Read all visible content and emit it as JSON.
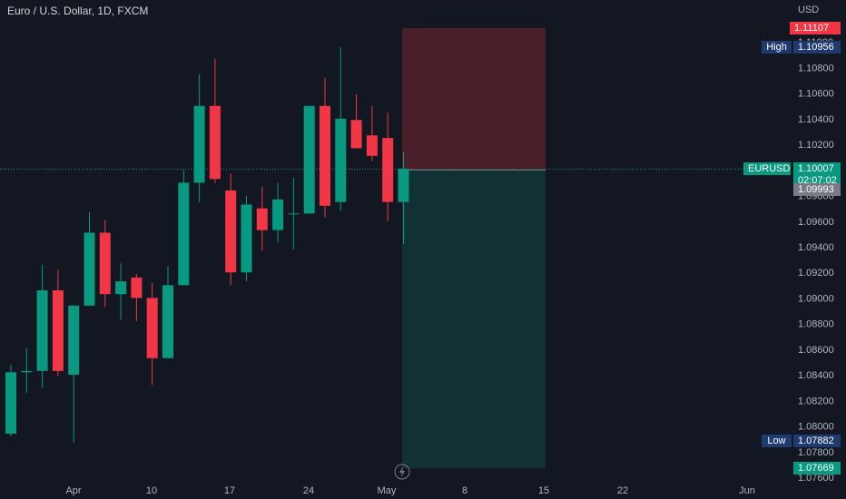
{
  "header": {
    "title": "Euro / U.S. Dollar, 1D, FXCM"
  },
  "price_axis": {
    "currency": "USD"
  },
  "markers": {
    "stop": "1.11107",
    "high_label": "High",
    "high_value": "1.10956",
    "symbol": "EURUSD",
    "last_price": "1.10007",
    "countdown": "02:07:02",
    "alt_price": "1.09993",
    "low_label": "Low",
    "low_value": "1.07882",
    "target": "1.07669"
  },
  "colors": {
    "up": "#089981",
    "down": "#f23645",
    "background": "#131722",
    "stop_zone": "rgba(242,54,69,0.25)",
    "target_zone": "rgba(8,153,129,0.2)"
  },
  "chart_data": {
    "type": "candlestick",
    "title": "Euro / U.S. Dollar, 1D, FXCM",
    "ylabel": "USD",
    "ylim": [
      1.076,
      1.112
    ],
    "y_ticks": [
      "1.07600",
      "1.07800",
      "1.08000",
      "1.08200",
      "1.08400",
      "1.08600",
      "1.08800",
      "1.09000",
      "1.09200",
      "1.09400",
      "1.09600",
      "1.09800",
      "1.10000",
      "1.10200",
      "1.10400",
      "1.10600",
      "1.10800",
      "1.11000",
      "1.11200"
    ],
    "x_ticks": [
      "Apr",
      "10",
      "17",
      "24",
      "May",
      "8",
      "15",
      "22",
      "Jun"
    ],
    "candles": [
      {
        "o": 1.0794,
        "h": 1.0848,
        "l": 1.0792,
        "c": 1.0842
      },
      {
        "o": 1.0842,
        "h": 1.0861,
        "l": 1.0826,
        "c": 1.0843
      },
      {
        "o": 1.0843,
        "h": 1.0926,
        "l": 1.083,
        "c": 1.0906
      },
      {
        "o": 1.0906,
        "h": 1.0922,
        "l": 1.0839,
        "c": 1.0843
      },
      {
        "o": 1.084,
        "h": 1.0894,
        "l": 1.0787,
        "c": 1.0894
      },
      {
        "o": 1.0894,
        "h": 1.0967,
        "l": 1.0894,
        "c": 1.0951
      },
      {
        "o": 1.0951,
        "h": 1.0961,
        "l": 1.0893,
        "c": 1.0903
      },
      {
        "o": 1.0903,
        "h": 1.0927,
        "l": 1.0883,
        "c": 1.0913
      },
      {
        "o": 1.0916,
        "h": 1.0919,
        "l": 1.0882,
        "c": 1.09
      },
      {
        "o": 1.09,
        "h": 1.0912,
        "l": 1.0832,
        "c": 1.0853
      },
      {
        "o": 1.0853,
        "h": 1.0925,
        "l": 1.0853,
        "c": 1.091
      },
      {
        "o": 1.091,
        "h": 1.1,
        "l": 1.091,
        "c": 1.099
      },
      {
        "o": 1.099,
        "h": 1.1075,
        "l": 1.0975,
        "c": 1.105
      },
      {
        "o": 1.105,
        "h": 1.1087,
        "l": 1.099,
        "c": 1.0993
      },
      {
        "o": 1.0984,
        "h": 1.0997,
        "l": 1.091,
        "c": 1.092
      },
      {
        "o": 1.092,
        "h": 1.098,
        "l": 1.0913,
        "c": 1.0973
      },
      {
        "o": 1.097,
        "h": 1.0987,
        "l": 1.0937,
        "c": 1.0953
      },
      {
        "o": 1.0953,
        "h": 1.099,
        "l": 1.0943,
        "c": 1.0977
      },
      {
        "o": 1.0966,
        "h": 1.0994,
        "l": 1.0938,
        "c": 1.0966
      },
      {
        "o": 1.0966,
        "h": 1.105,
        "l": 1.0966,
        "c": 1.105
      },
      {
        "o": 1.105,
        "h": 1.1072,
        "l": 1.0963,
        "c": 1.0972
      },
      {
        "o": 1.0975,
        "h": 1.1096,
        "l": 1.0968,
        "c": 1.104
      },
      {
        "o": 1.1039,
        "h": 1.1059,
        "l": 1.1019,
        "c": 1.1017
      },
      {
        "o": 1.1027,
        "h": 1.105,
        "l": 1.1007,
        "c": 1.1011
      },
      {
        "o": 1.1025,
        "h": 1.1045,
        "l": 1.096,
        "c": 1.0975
      },
      {
        "o": 1.0975,
        "h": 1.1014,
        "l": 1.0942,
        "c": 1.1001
      }
    ],
    "position": {
      "type": "short",
      "entry": 1.1,
      "stop": 1.11107,
      "target": 1.07669
    }
  }
}
